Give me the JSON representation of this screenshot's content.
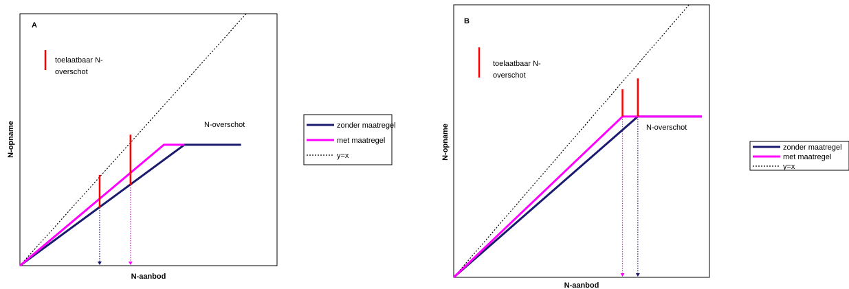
{
  "colors": {
    "zonder": "#1a1a6e",
    "met": "#ff00ff",
    "yx": "#000000",
    "allowed": "#ff0000"
  },
  "legend": {
    "items": [
      {
        "label": "zonder maatregel",
        "color": "#1a1a6e",
        "style": "solid"
      },
      {
        "label": "met maatregel",
        "color": "#ff00ff",
        "style": "solid"
      },
      {
        "label": "y=x",
        "color": "#000000",
        "style": "dotted"
      }
    ]
  },
  "chart_data": [
    {
      "type": "line",
      "panel": "A",
      "xlabel": "N-aanbod",
      "ylabel": "N-opname",
      "xlim": [
        0,
        100
      ],
      "ylim": [
        0,
        100
      ],
      "annotation_legend": [
        "toelaatbaar N-",
        "overschot"
      ],
      "region_label": "N-overschot",
      "series": [
        {
          "name": "zonder maatregel",
          "x": [
            0,
            64,
            86
          ],
          "y": [
            0,
            48,
            48
          ]
        },
        {
          "name": "met maatregel",
          "x": [
            0,
            56,
            64
          ],
          "y": [
            0,
            48,
            48
          ]
        },
        {
          "name": "y=x",
          "x": [
            0,
            88
          ],
          "y": [
            0,
            100
          ]
        }
      ],
      "allowed_surplus_bars": [
        {
          "x": 31,
          "y_low": 23,
          "y_high": 36
        },
        {
          "x": 43,
          "y_low": 32,
          "y_high": 52
        }
      ],
      "drop_lines": [
        {
          "x": 31,
          "y": 23,
          "color": "#1a1a6e"
        },
        {
          "x": 43,
          "y": 32,
          "color": "#ff00ff"
        }
      ]
    },
    {
      "type": "line",
      "panel": "B",
      "xlabel": "N-aanbod",
      "ylabel": "N-opname",
      "xlim": [
        0,
        100
      ],
      "ylim": [
        0,
        100
      ],
      "annotation_legend": [
        "toelaatbaar N-",
        "overschot"
      ],
      "region_label": "N-overschot",
      "series": [
        {
          "name": "zonder maatregel",
          "x": [
            0,
            72,
            97
          ],
          "y": [
            0,
            59,
            59
          ]
        },
        {
          "name": "met maatregel",
          "x": [
            0,
            66,
            97
          ],
          "y": [
            0,
            59,
            59
          ]
        },
        {
          "name": "y=x",
          "x": [
            0,
            92
          ],
          "y": [
            0,
            100
          ]
        }
      ],
      "allowed_surplus_bars": [
        {
          "x": 66,
          "y_low": 59,
          "y_high": 69
        },
        {
          "x": 72,
          "y_low": 59,
          "y_high": 73
        }
      ],
      "drop_lines": [
        {
          "x": 66,
          "y": 59,
          "color": "#ff00ff"
        },
        {
          "x": 72,
          "y": 59,
          "color": "#1a1a6e"
        }
      ]
    }
  ]
}
